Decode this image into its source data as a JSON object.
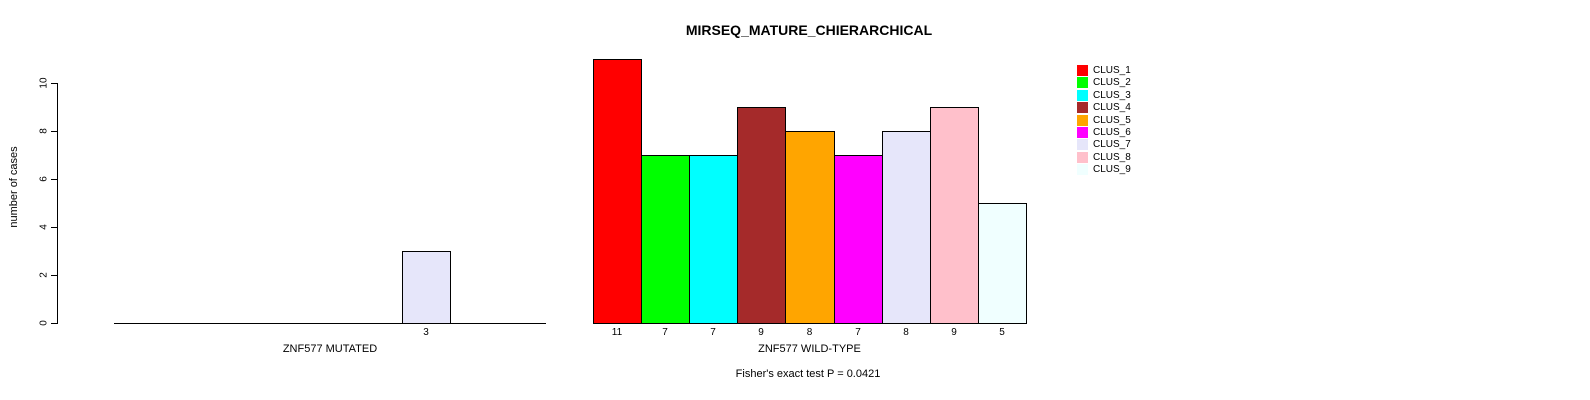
{
  "title": "MIRSEQ_MATURE_CHIERARCHICAL",
  "caption": "Fisher's exact test P = 0.0421",
  "chart_data": {
    "type": "bar",
    "title": "MIRSEQ_MATURE_CHIERARCHICAL",
    "ylabel": "number of cases",
    "xlabel": "",
    "ylim": [
      0,
      10
    ],
    "y_ticks": [
      "0",
      "2",
      "4",
      "6",
      "8",
      "10"
    ],
    "grid": "off",
    "categories": [
      "CLUS_1",
      "CLUS_2",
      "CLUS_3",
      "CLUS_4",
      "CLUS_5",
      "CLUS_6",
      "CLUS_7",
      "CLUS_8",
      "CLUS_9"
    ],
    "colors": [
      "#FF0000",
      "#00FF00",
      "#00FFFF",
      "#A52A2A",
      "#FFA500",
      "#FF00FF",
      "#E6E6FA",
      "#FFC0CB",
      "#F0FFFF"
    ],
    "panels": [
      {
        "xlabel": "ZNF577 MUTATED",
        "values": [
          0,
          0,
          0,
          0,
          0,
          0,
          3,
          0,
          0
        ],
        "bar_labels": [
          "",
          "",
          "",
          "",
          "",
          "",
          "3",
          "",
          ""
        ]
      },
      {
        "xlabel": "ZNF577 WILD-TYPE",
        "values": [
          11,
          7,
          7,
          9,
          8,
          7,
          8,
          9,
          5
        ],
        "bar_labels": [
          "11",
          "7",
          "7",
          "9",
          "8",
          "7",
          "8",
          "9",
          "5"
        ]
      }
    ],
    "legend": {
      "position": "right",
      "entries": [
        {
          "label": "CLUS_1",
          "color": "#FF0000"
        },
        {
          "label": "CLUS_2",
          "color": "#00FF00"
        },
        {
          "label": "CLUS_3",
          "color": "#00FFFF"
        },
        {
          "label": "CLUS_4",
          "color": "#A52A2A"
        },
        {
          "label": "CLUS_5",
          "color": "#FFA500"
        },
        {
          "label": "CLUS_6",
          "color": "#FF00FF"
        },
        {
          "label": "CLUS_7",
          "color": "#E6E6FA"
        },
        {
          "label": "CLUS_8",
          "color": "#FFC0CB"
        },
        {
          "label": "CLUS_9",
          "color": "#F0FFFF"
        }
      ]
    },
    "annotation": "Fisher's exact test P = 0.0421"
  }
}
